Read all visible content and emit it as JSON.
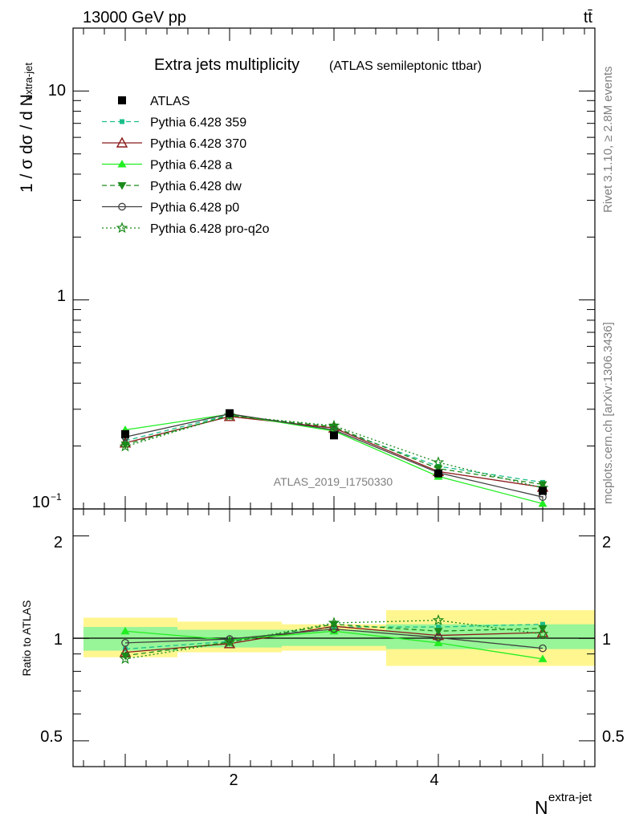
{
  "header": {
    "energy_label": "13000 GeV pp",
    "process_label": "tt̄"
  },
  "side_labels": {
    "rivet": "Rivet 3.1.10, ≥ 2.8M events",
    "mcplots": "mcplots.cern.ch [arXiv:1306.3436]"
  },
  "watermark": "ATLAS_2019_I1750330",
  "chart_data": [
    {
      "type": "line",
      "title": "Extra jets multiplicity",
      "subtitle": "(ATLAS semileptonic ttbar)",
      "ylabel": "1 / σ dσ / d N",
      "ylabel_sup": "extra-jet",
      "y_scale": "log",
      "ylim": [
        0.1,
        20
      ],
      "xlim": [
        0.5,
        5.5
      ],
      "x": [
        1,
        2,
        3,
        4,
        5
      ],
      "y_tick_labels": [
        "10",
        "1",
        "10−1"
      ],
      "legend_position": "top-left",
      "data": {
        "name": "ATLAS",
        "values": [
          0.228,
          0.287,
          0.225,
          0.148,
          0.122
        ]
      },
      "series": [
        {
          "name": "Pythia 6.428 359",
          "color": "#1bbf8a",
          "style": "dashed",
          "marker": "small-square",
          "values": [
            0.212,
            0.282,
            0.243,
            0.16,
            0.134
          ]
        },
        {
          "name": "Pythia 6.428 370",
          "color": "#8b1a1a",
          "style": "solid",
          "marker": "open-triangle",
          "values": [
            0.207,
            0.277,
            0.244,
            0.151,
            0.127
          ]
        },
        {
          "name": "Pythia 6.428 a",
          "color": "#22ee22",
          "style": "solid",
          "marker": "filled-triangle",
          "values": [
            0.239,
            0.284,
            0.236,
            0.143,
            0.106
          ]
        },
        {
          "name": "Pythia 6.428 dw",
          "color": "#1a8a1a",
          "style": "dashed",
          "marker": "filled-triangle-down",
          "values": [
            0.203,
            0.28,
            0.247,
            0.156,
            0.131
          ]
        },
        {
          "name": "Pythia 6.428 p0",
          "color": "#404040",
          "style": "solid",
          "marker": "open-circle",
          "values": [
            0.221,
            0.285,
            0.239,
            0.149,
            0.114
          ]
        },
        {
          "name": "Pythia 6.428 pro-q2o",
          "color": "#1a8a1a",
          "style": "dotted",
          "marker": "open-star",
          "values": [
            0.199,
            0.28,
            0.25,
            0.167,
            0.126
          ]
        }
      ]
    },
    {
      "type": "line",
      "ylabel": "Ratio to ATLAS",
      "xlabel": "N",
      "xlabel_sup": "extra-jet",
      "y_scale": "log",
      "ylim": [
        0.42,
        2.4
      ],
      "xlim": [
        0.5,
        5.5
      ],
      "x_tick_labels": [
        "2",
        "4"
      ],
      "y_tick_labels": [
        "2",
        "1",
        "0.5"
      ],
      "bands": [
        {
          "x0": 0.6,
          "x1": 1.5,
          "stat": [
            0.92,
            1.08
          ],
          "total": [
            0.88,
            1.15
          ]
        },
        {
          "x0": 1.5,
          "x1": 2.5,
          "stat": [
            0.94,
            1.06
          ],
          "total": [
            0.91,
            1.12
          ]
        },
        {
          "x0": 2.5,
          "x1": 3.5,
          "stat": [
            0.95,
            1.06
          ],
          "total": [
            0.92,
            1.1
          ]
        },
        {
          "x0": 3.5,
          "x1": 5.5,
          "stat": [
            0.93,
            1.1
          ],
          "total": [
            0.83,
            1.21
          ]
        }
      ],
      "series": [
        {
          "name": "Pythia 6.428 359",
          "values": [
            0.93,
            0.98,
            1.08,
            1.08,
            1.1
          ]
        },
        {
          "name": "Pythia 6.428 370",
          "values": [
            0.91,
            0.965,
            1.085,
            1.02,
            1.04
          ]
        },
        {
          "name": "Pythia 6.428 a",
          "values": [
            1.05,
            0.99,
            1.05,
            0.97,
            0.87
          ]
        },
        {
          "name": "Pythia 6.428 dw",
          "values": [
            0.89,
            0.975,
            1.1,
            1.05,
            1.07
          ]
        },
        {
          "name": "Pythia 6.428 p0",
          "values": [
            0.97,
            0.995,
            1.065,
            1.005,
            0.935
          ]
        },
        {
          "name": "Pythia 6.428 pro-q2o",
          "values": [
            0.87,
            0.975,
            1.11,
            1.13,
            1.03
          ]
        }
      ]
    }
  ]
}
